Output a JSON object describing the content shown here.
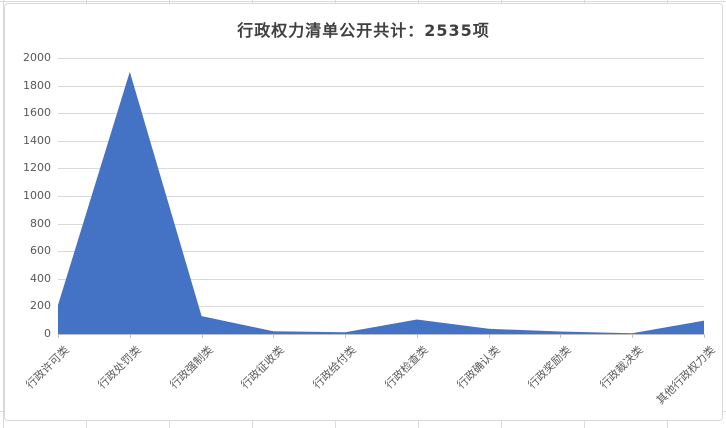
{
  "chart_data": {
    "type": "area",
    "title": "行政权力清单公开共计：2535项",
    "categories": [
      "行政许可类",
      "行政处罚类",
      "行政强制类",
      "行政征收类",
      "行政给付类",
      "行政检查类",
      "行政确认类",
      "行政奖励类",
      "行政裁决类",
      "其他行政权力类"
    ],
    "values": [
      210,
      1900,
      130,
      20,
      12,
      105,
      38,
      18,
      5,
      97
    ],
    "total": 2535,
    "xlabel": "",
    "ylabel": "",
    "ylim": [
      0,
      2000
    ],
    "yticks": [
      0,
      200,
      400,
      600,
      800,
      1000,
      1200,
      1400,
      1600,
      1800,
      2000
    ],
    "grid": "horizontal",
    "legend_position": "none",
    "series_name": "行政权力清单",
    "category_label_rotation_deg": -45
  },
  "colors": {
    "series_fill": "#4472C4",
    "gridline": "#d9d9d9",
    "axis_line": "#bfbfbf",
    "tick_text": "#595959",
    "title_text": "#404040",
    "chart_border": "#d9d9d9",
    "sheet_gridline": "#d9d9d9",
    "background": "#ffffff"
  }
}
